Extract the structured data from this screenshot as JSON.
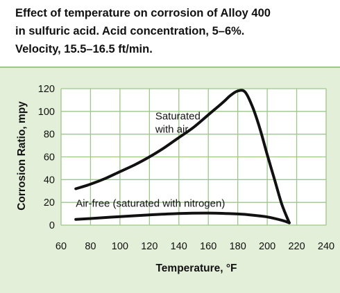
{
  "title_lines": [
    "Effect of temperature on corrosion of Alloy 400",
    "in sulfuric acid. Acid concentration, 5–6%.",
    "Velocity, 15.5–16.5 ft/min."
  ],
  "colors": {
    "background": "#e3efd8",
    "header": "#ffffff",
    "grid": "#9dc68a",
    "line": "#111111"
  },
  "chart_data": {
    "type": "line",
    "title": "Effect of temperature on corrosion of Alloy 400 in sulfuric acid. Acid concentration, 5–6%. Velocity, 15.5–16.5 ft/min.",
    "xlabel": "Temperature, °F",
    "ylabel": "Corrosion Ratio, mpy",
    "xlim": [
      60,
      240
    ],
    "ylim": [
      0,
      120
    ],
    "xticks": [
      60,
      80,
      100,
      120,
      140,
      160,
      180,
      200,
      220,
      240
    ],
    "yticks": [
      0,
      20,
      40,
      60,
      80,
      100,
      120
    ],
    "xtick_labels": [
      "60",
      "80",
      "100",
      "120",
      "140",
      "160",
      "180",
      "200",
      "220",
      "240"
    ],
    "ytick_labels": [
      "0",
      "20",
      "40",
      "60",
      "80",
      "100",
      "120"
    ],
    "grid": true,
    "annotations": [
      {
        "lines": [
          "Saturated",
          "with air"
        ],
        "x": 124,
        "y": 93
      },
      {
        "lines": [
          "Air-free (saturated with nitrogen)"
        ],
        "x": 70,
        "y": 16
      }
    ],
    "series": [
      {
        "name": "Saturated with air",
        "x": [
          70,
          80,
          90,
          100,
          110,
          120,
          130,
          140,
          150,
          160,
          170,
          175,
          180,
          185,
          190,
          195,
          200,
          205,
          210,
          215
        ],
        "y": [
          32,
          36,
          41,
          47,
          53,
          60,
          68,
          77,
          86,
          97,
          108,
          114,
          118,
          117,
          104,
          85,
          62,
          40,
          18,
          2
        ]
      },
      {
        "name": "Air-free (saturated with nitrogen)",
        "x": [
          70,
          80,
          100,
          120,
          140,
          160,
          180,
          190,
          200,
          210,
          215
        ],
        "y": [
          5,
          5.8,
          7.5,
          9,
          10.2,
          10.6,
          9.8,
          8.8,
          7.2,
          4.2,
          2
        ]
      }
    ]
  }
}
